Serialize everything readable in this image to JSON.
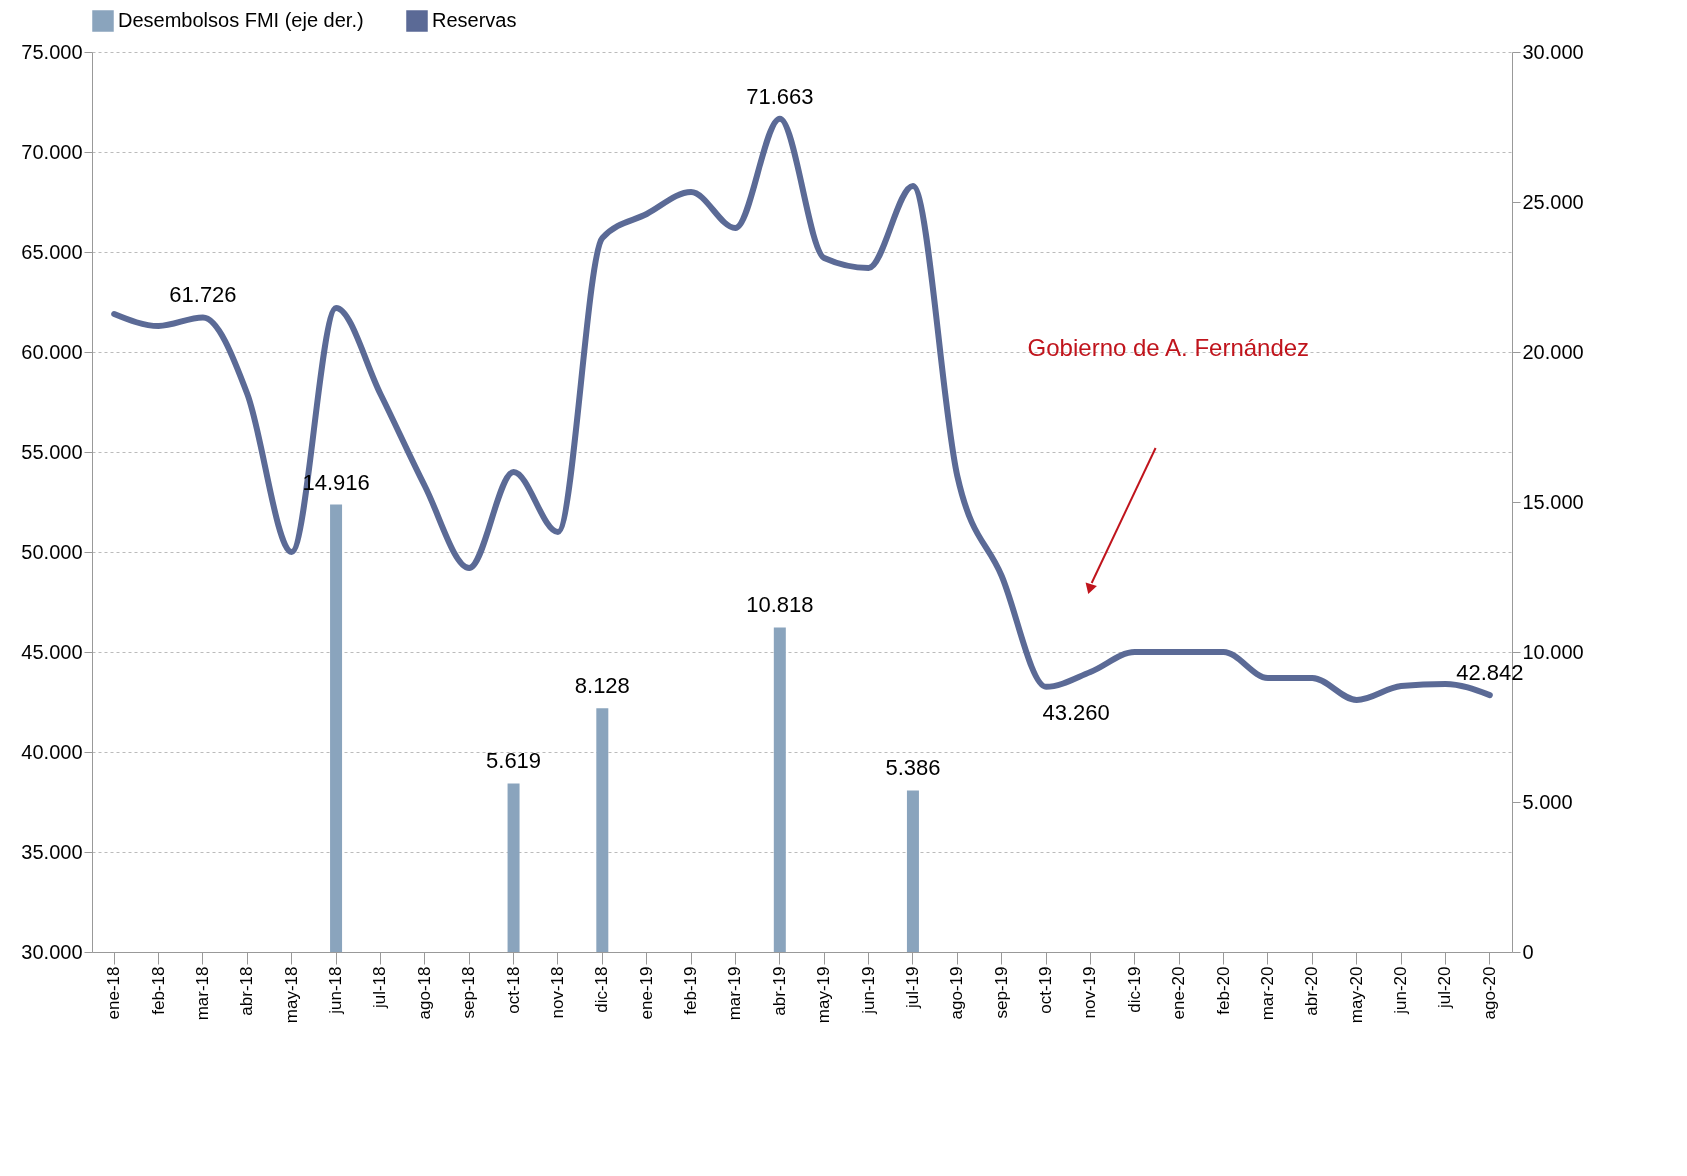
{
  "chart_data": {
    "type": "bar",
    "categories": [
      "ene-18",
      "feb-18",
      "mar-18",
      "abr-18",
      "may-18",
      "jun-18",
      "jul-18",
      "ago-18",
      "sep-18",
      "oct-18",
      "nov-18",
      "dic-18",
      "ene-19",
      "feb-19",
      "mar-19",
      "abr-19",
      "may-19",
      "jun-19",
      "jul-19",
      "ago-19",
      "sep-19",
      "oct-19",
      "nov-19",
      "dic-19",
      "ene-20",
      "feb-20",
      "mar-20",
      "abr-20",
      "may-20",
      "jun-20",
      "jul-20",
      "ago-20"
    ],
    "series": [
      {
        "name": "Desembolsos FMI (eje der.)",
        "axis": "y2",
        "color": "#8aa4bd",
        "values": [
          null,
          null,
          null,
          null,
          null,
          14916,
          null,
          null,
          null,
          5619,
          null,
          8128,
          null,
          null,
          null,
          10818,
          null,
          null,
          5386,
          null,
          null,
          null,
          null,
          null,
          null,
          null,
          null,
          null,
          null,
          null,
          null,
          null
        ],
        "value_labels": [
          null,
          null,
          null,
          null,
          null,
          "14.916",
          null,
          null,
          null,
          "5.619",
          null,
          "8.128",
          null,
          null,
          null,
          "10.818",
          null,
          null,
          "5.386",
          null,
          null,
          null,
          null,
          null,
          null,
          null,
          null,
          null,
          null,
          null,
          null,
          null
        ]
      },
      {
        "name": "Reservas",
        "type": "line",
        "color": "#5b6a96",
        "values": [
          61900,
          61300,
          61726,
          57900,
          50000,
          62200,
          57900,
          53300,
          49200,
          54000,
          51000,
          65700,
          66900,
          68000,
          66200,
          71663,
          64700,
          64200,
          68300,
          53800,
          48800,
          43260,
          44000,
          45000,
          45000,
          45000,
          43700,
          43700,
          42600,
          43300,
          43400,
          42842
        ],
        "value_labels": [
          null,
          null,
          "61.726",
          null,
          null,
          null,
          null,
          null,
          null,
          null,
          null,
          null,
          null,
          null,
          null,
          "71.663",
          null,
          null,
          null,
          null,
          null,
          "43.260",
          null,
          null,
          null,
          null,
          null,
          null,
          null,
          null,
          null,
          "42.842"
        ]
      }
    ],
    "ylim": [
      30000,
      75000
    ],
    "yticks": [
      {
        "value": 30000,
        "label": "30.000"
      },
      {
        "value": 35000,
        "label": "35.000"
      },
      {
        "value": 40000,
        "label": "40.000"
      },
      {
        "value": 45000,
        "label": "45.000"
      },
      {
        "value": 50000,
        "label": "50.000"
      },
      {
        "value": 55000,
        "label": "55.000"
      },
      {
        "value": 60000,
        "label": "60.000"
      },
      {
        "value": 65000,
        "label": "65.000"
      },
      {
        "value": 70000,
        "label": "70.000"
      },
      {
        "value": 75000,
        "label": "75.000"
      }
    ],
    "y2lim": [
      0,
      30000
    ],
    "y2ticks": [
      0,
      {
        "value": 5000,
        "label": "5.000"
      },
      {
        "value": 10000,
        "label": "10.000"
      },
      {
        "value": 15000,
        "label": "15.000"
      },
      {
        "value": 20000,
        "label": "20.000"
      },
      {
        "value": 25000,
        "label": "25.000"
      },
      {
        "value": 30000,
        "label": "30.000"
      }
    ],
    "annotations": [
      "Gobierno de A. Fernández"
    ],
    "grid": "y",
    "legend": "top",
    "marker": "none",
    "line_style": "solid"
  }
}
